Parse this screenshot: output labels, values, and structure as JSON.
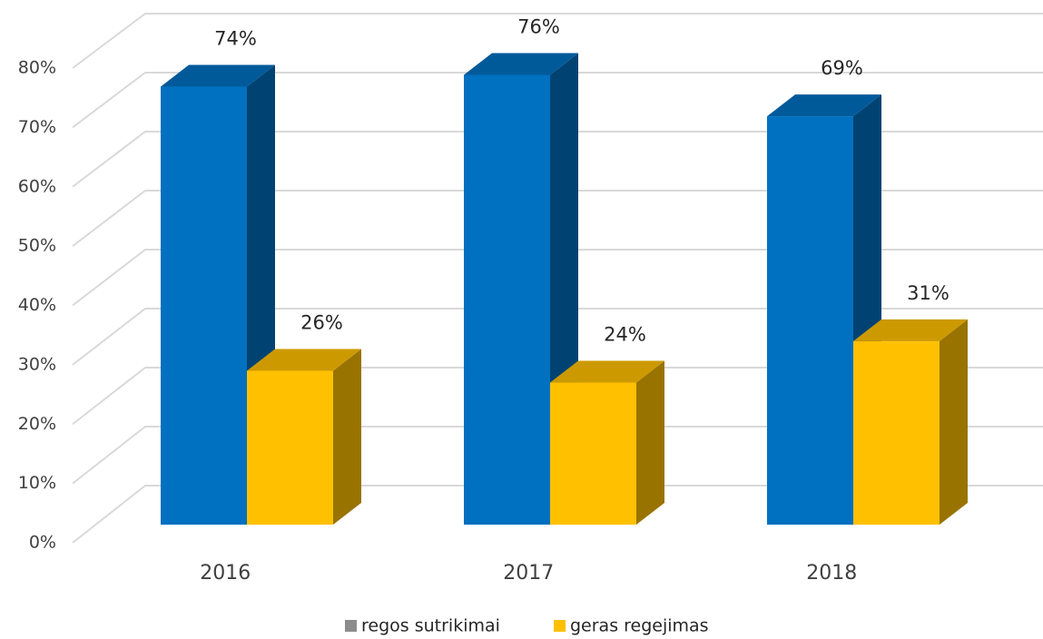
{
  "chart_data": {
    "type": "bar3d",
    "categories": [
      "2016",
      "2017",
      "2018"
    ],
    "series": [
      {
        "name": "regos sutrikimai",
        "color": "#0070c0",
        "legend_color": "#8c8c8c",
        "values": [
          74,
          76,
          69
        ],
        "value_labels": [
          "74%",
          "76%",
          "69%"
        ]
      },
      {
        "name": "geras regejimas",
        "color": "#ffc000",
        "legend_color": "#ffc000",
        "values": [
          26,
          24,
          31
        ],
        "value_labels": [
          "26%",
          "24%",
          "31%"
        ]
      }
    ],
    "ylim": [
      0,
      80
    ],
    "yticks": [
      {
        "value": 0,
        "label": "0%"
      },
      {
        "value": 10,
        "label": "10%"
      },
      {
        "value": 20,
        "label": "20%"
      },
      {
        "value": 30,
        "label": "30%"
      },
      {
        "value": 40,
        "label": "40%"
      },
      {
        "value": 50,
        "label": "50%"
      },
      {
        "value": 60,
        "label": "60%"
      },
      {
        "value": 70,
        "label": "70%"
      },
      {
        "value": 80,
        "label": "80%"
      }
    ],
    "grid": true,
    "legend": "bottom"
  }
}
